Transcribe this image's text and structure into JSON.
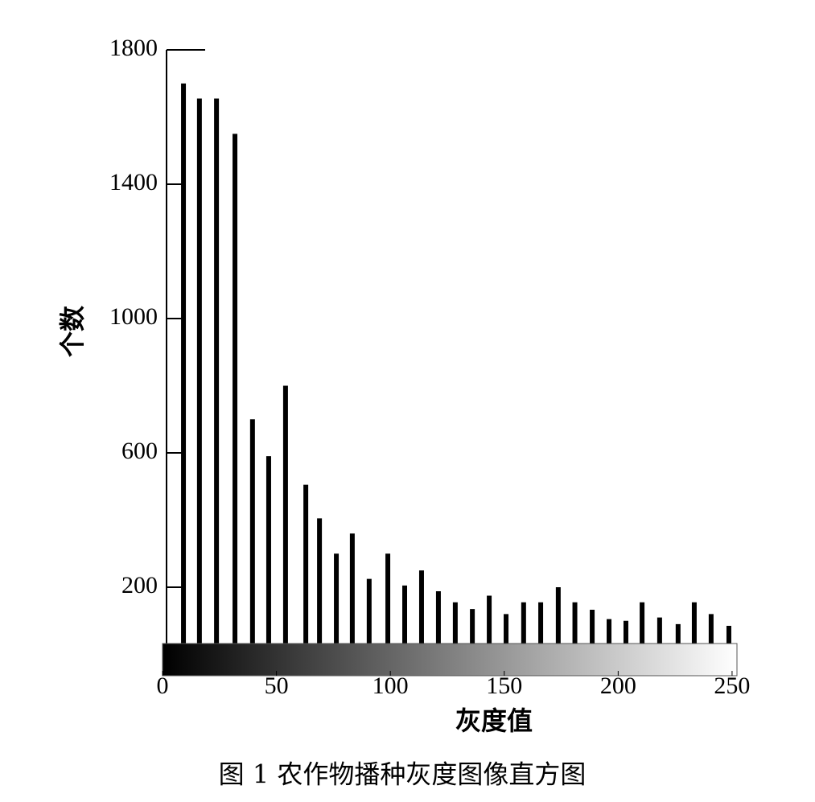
{
  "chart_data": {
    "type": "bar",
    "caption": "图 1 农作物播种灰度图像直方图",
    "x_label": "灰度值",
    "y_label": "个数",
    "x": [
      9.2,
      16.2,
      23.7,
      31.8,
      39.5,
      46.6,
      54,
      62.9,
      68.9,
      76.3,
      83.3,
      90.7,
      98.9,
      106.3,
      113.7,
      121.1,
      128.5,
      136,
      143.4,
      150.8,
      158.5,
      166,
      173.7,
      181,
      188.6,
      196,
      203.4,
      210.5,
      218.2,
      226.3,
      233.4,
      240.8,
      248.6
    ],
    "values": [
      1700,
      1655,
      1655,
      1550,
      700,
      590,
      800,
      505,
      405,
      300,
      360,
      225,
      300,
      205,
      250,
      188,
      155,
      135,
      175,
      120,
      155,
      155,
      200,
      155,
      133,
      105,
      100,
      155,
      110,
      90,
      155,
      120,
      85
    ],
    "color": "#000000",
    "xlim": [
      0,
      252
    ],
    "xticks": [
      0,
      50,
      100,
      150,
      200,
      250
    ],
    "ylim": [
      0,
      1800
    ],
    "yticks": [
      200,
      600,
      1000,
      1400,
      1800
    ]
  }
}
